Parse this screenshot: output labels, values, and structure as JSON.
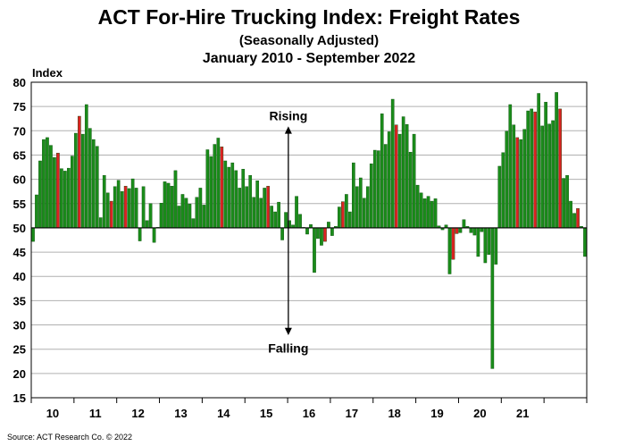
{
  "chart_data": {
    "type": "bar",
    "title": "ACT For-Hire Trucking Index: Freight Rates",
    "subtitle": "(Seasonally Adjusted)",
    "period": "January 2010 - September 2022",
    "ylabel": "Index",
    "ylim": [
      15,
      80
    ],
    "yticks": [
      15,
      20,
      25,
      30,
      35,
      40,
      45,
      50,
      55,
      60,
      65,
      70,
      75,
      80
    ],
    "baseline": 50,
    "grid": true,
    "x_tick_labels": [
      "10",
      "11",
      "12",
      "13",
      "14",
      "15",
      "16",
      "17",
      "18",
      "19",
      "20",
      "21"
    ],
    "annotations": {
      "rising": "Rising",
      "falling": "Falling"
    },
    "colors": {
      "up": "#1a8c1a",
      "down": "#dd2222",
      "stroke": "#0b4d0b",
      "grid": "#b0b0b0"
    },
    "series": [
      {
        "color": "#1a8c1a",
        "year": 2010,
        "values": [
          47.2,
          56.8,
          63.8,
          68.2,
          68.6,
          67,
          64.5,
          65.4,
          62.2,
          61.7,
          62.3,
          64.8
        ]
      },
      {
        "year": 2011,
        "values": [
          69.5,
          73,
          69.3,
          75.4,
          70.5,
          68.2,
          66.8,
          52.1,
          60.8,
          57.2,
          55.5,
          58.5
        ]
      },
      {
        "year": 2012,
        "values": [
          59.8,
          57.5,
          58.6,
          58.1,
          60.1,
          58.2,
          47.3,
          58.5,
          51.5,
          55,
          47,
          50.1
        ]
      },
      {
        "year": 2013,
        "values": [
          55.1,
          59.5,
          59.2,
          58.6,
          61.8,
          54.5,
          56.9,
          56.1,
          54.9,
          51.9,
          56.3,
          58.2
        ]
      },
      {
        "year": 2014,
        "values": [
          54.7,
          66.1,
          64.7,
          67.2,
          68.5,
          66.7,
          63.8,
          62.5,
          63.4,
          61.8,
          58.2,
          62.1
        ]
      },
      {
        "year": 2015,
        "values": [
          58.5,
          60.8,
          56.3,
          59.7,
          56.1,
          58.2,
          58.6,
          54.5,
          53.3,
          55.3,
          47.5,
          53.2
        ]
      },
      {
        "year": 2016,
        "values": [
          51.5,
          50.6,
          56.5,
          52.8,
          50.1,
          48.7,
          50.7,
          40.8,
          47.8,
          46.4,
          47.2,
          51.2
        ]
      },
      {
        "year": 2017,
        "values": [
          48.4,
          50.3,
          54.3,
          55.4,
          56.9,
          53.3,
          63.4,
          58.5,
          60.3,
          56.1,
          58.5,
          63.2
        ]
      },
      {
        "year": 2018,
        "values": [
          66,
          65.9,
          73.5,
          67.2,
          69.8,
          76.5,
          71.2,
          69.3,
          72.9,
          71.3,
          65.6,
          69.3
        ]
      },
      {
        "year": 2019,
        "values": [
          58.8,
          57.2,
          56,
          56.5,
          55.5,
          56,
          50.4,
          49.6,
          50.6,
          40.5,
          43.5,
          48.8
        ]
      },
      {
        "year": 2020,
        "values": [
          49,
          51.7,
          50.3,
          49,
          48.5,
          44.1,
          49.2,
          42.8,
          44.5,
          21,
          42.5,
          62.7
        ]
      },
      {
        "year": 2021,
        "values": [
          65.5,
          69.9,
          75.4,
          71.2,
          68.6,
          68.2,
          70.3,
          74.1,
          74.5,
          73.9,
          77.7,
          71
        ]
      },
      {
        "year": 2022,
        "values": [
          75.9,
          71.4,
          72.1,
          77.9,
          74.5,
          60.2,
          60.8,
          55.5,
          53,
          54,
          50.3,
          44.1
        ]
      }
    ]
  },
  "source": "Source: ACT Research Co. © 2022"
}
